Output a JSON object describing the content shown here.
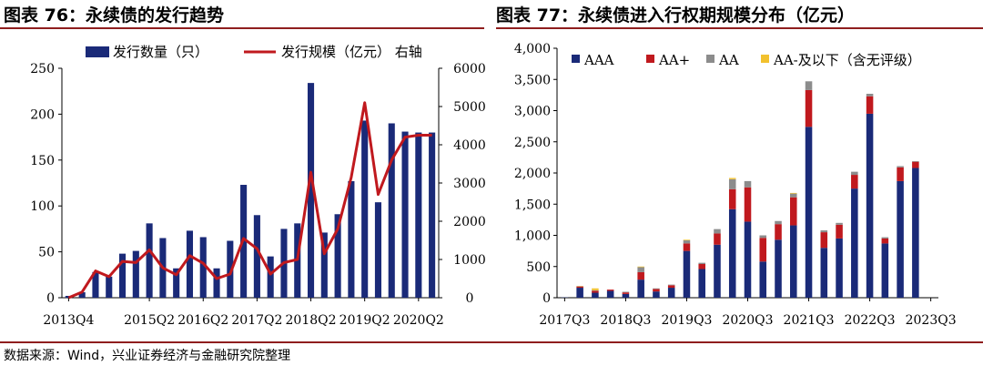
{
  "titles": {
    "left": "图表 76：永续债的发行趋势",
    "right": "图表 77：永续债进入行权期规模分布（亿元）"
  },
  "source": "数据来源：Wind，兴业证券经济与金融研究院整理",
  "chart_data": [
    {
      "type": "bar",
      "title": "图表 76：永续债的发行趋势",
      "legend_placement": "top",
      "colors": {
        "bar": "#1a2a78",
        "line": "#c0191e"
      },
      "y_left": {
        "min": 0,
        "max": 250,
        "ticks": [
          "0",
          "50",
          "100",
          "150",
          "200",
          "250"
        ]
      },
      "y_right": {
        "min": 0,
        "max": 6000,
        "ticks": [
          "0",
          "1000",
          "2000",
          "3000",
          "4000",
          "5000",
          "6000"
        ],
        "label": "右轴"
      },
      "x_tick_labels": [
        "2013Q4",
        "2015Q2",
        "2016Q2",
        "2017Q2",
        "2018Q2",
        "2019Q2",
        "2020Q2"
      ],
      "x_tick_index": [
        0,
        6,
        10,
        14,
        18,
        22,
        26
      ],
      "categories": [
        "2013Q4",
        "2014Q1",
        "2014Q2",
        "2014Q3",
        "2014Q4",
        "2015Q1",
        "2015Q2",
        "2015Q3",
        "2015Q4",
        "2016Q1",
        "2016Q2",
        "2016Q3",
        "2016Q4",
        "2017Q1",
        "2017Q2",
        "2017Q3",
        "2017Q4",
        "2018Q1",
        "2018Q2",
        "2018Q3",
        "2018Q4",
        "2019Q1",
        "2019Q2",
        "2019Q3",
        "2019Q4",
        "2020Q1",
        "2020Q2",
        "2020Q3"
      ],
      "series": [
        {
          "name": "发行数量（只）",
          "kind": "bar",
          "axis": "left",
          "values": [
            2,
            6,
            28,
            23,
            48,
            51,
            81,
            65,
            32,
            73,
            66,
            32,
            62,
            123,
            90,
            45,
            75,
            81,
            234,
            71,
            91,
            127,
            193,
            104,
            190,
            181,
            180,
            180
          ]
        },
        {
          "name": "发行规模（亿元）",
          "kind": "line",
          "axis": "right",
          "values": [
            0,
            150,
            700,
            550,
            950,
            920,
            1250,
            780,
            600,
            1100,
            900,
            500,
            620,
            1550,
            1280,
            620,
            920,
            1000,
            3280,
            1150,
            1800,
            3150,
            5100,
            2700,
            3600,
            4200,
            4250,
            4250
          ]
        }
      ]
    },
    {
      "type": "bar",
      "stacked": true,
      "title": "图表 77：永续债进入行权期规模分布（亿元）",
      "legend_placement": "top",
      "ylim": [
        0,
        4000
      ],
      "y_ticks": [
        "0",
        "500",
        "1,000",
        "1,500",
        "2,000",
        "2,500",
        "3,000",
        "3,500",
        "4,000"
      ],
      "x_tick_labels": [
        "2017Q3",
        "2018Q3",
        "2019Q3",
        "2020Q3",
        "2021Q3",
        "2022Q3",
        "2023Q3"
      ],
      "x_tick_index": [
        0,
        4,
        8,
        12,
        16,
        20,
        24
      ],
      "categories": [
        "2017Q3",
        "2017Q4",
        "2018Q1",
        "2018Q2",
        "2018Q3",
        "2018Q4",
        "2019Q1",
        "2019Q2",
        "2019Q3",
        "2019Q4",
        "2020Q1",
        "2020Q2",
        "2020Q3",
        "2020Q4",
        "2021Q1",
        "2021Q2",
        "2021Q3",
        "2021Q4",
        "2022Q1",
        "2022Q2",
        "2022Q3",
        "2022Q4",
        "2023Q1",
        "2023Q2",
        "2023Q3"
      ],
      "series": [
        {
          "name": "AAA",
          "color": "#1a2a78",
          "values": [
            5,
            160,
            80,
            110,
            60,
            290,
            100,
            160,
            750,
            460,
            850,
            1420,
            1220,
            580,
            930,
            1160,
            2740,
            800,
            950,
            1750,
            2950,
            870,
            1870,
            2080,
            0
          ]
        },
        {
          "name": "AA+",
          "color": "#c0191e",
          "values": [
            0,
            20,
            30,
            20,
            25,
            120,
            40,
            40,
            120,
            80,
            180,
            320,
            550,
            380,
            250,
            450,
            590,
            250,
            220,
            220,
            280,
            80,
            220,
            100,
            0
          ]
        },
        {
          "name": "AA",
          "color": "#8c8c8c",
          "values": [
            0,
            5,
            10,
            0,
            10,
            80,
            10,
            10,
            50,
            20,
            70,
            160,
            100,
            40,
            50,
            60,
            140,
            30,
            30,
            50,
            40,
            20,
            20,
            10,
            0
          ]
        },
        {
          "name": "AA-及以下（含无评级）",
          "color": "#f2c12e",
          "values": [
            0,
            5,
            30,
            0,
            0,
            10,
            0,
            0,
            10,
            0,
            0,
            20,
            0,
            0,
            0,
            10,
            0,
            0,
            0,
            0,
            0,
            0,
            0,
            0,
            0
          ]
        }
      ]
    }
  ]
}
